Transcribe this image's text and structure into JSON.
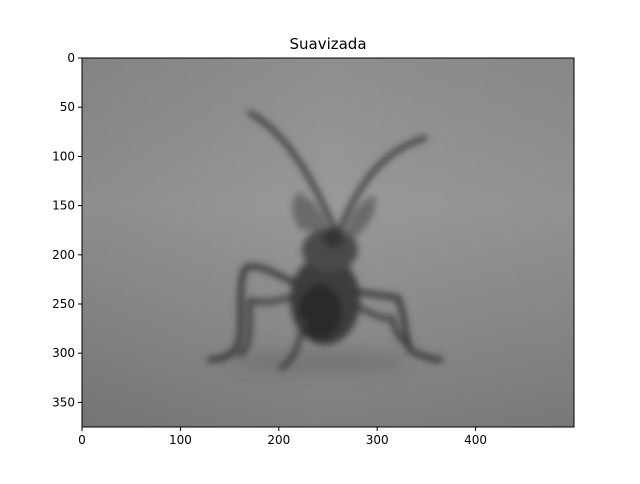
{
  "chart_data": {
    "type": "image",
    "title": "Suavizada",
    "colormap": "gray",
    "xlim": [
      0,
      500
    ],
    "ylim": [
      375,
      0
    ],
    "xticks": [
      0,
      100,
      200,
      300,
      400
    ],
    "yticks": [
      0,
      50,
      100,
      150,
      200,
      250,
      300,
      350
    ],
    "xtick_labels": [
      "0",
      "100",
      "200",
      "300",
      "400"
    ],
    "ytick_labels": [
      "0",
      "50",
      "100",
      "150",
      "200",
      "250",
      "300",
      "350"
    ],
    "y_inverted": true
  }
}
